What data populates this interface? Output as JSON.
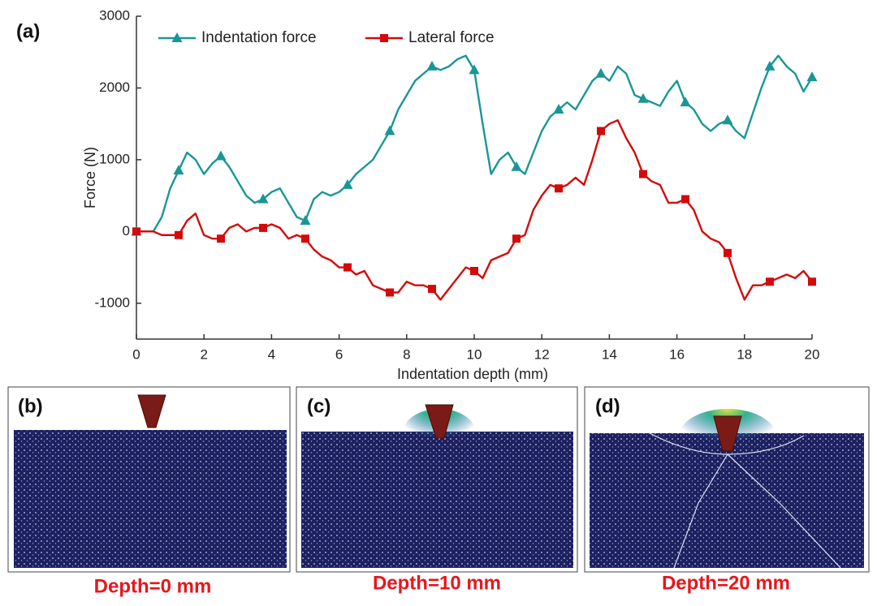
{
  "chart_data": {
    "type": "line",
    "panel_label": "(a)",
    "x_label": "Indentation depth (mm)",
    "y_label": "Force (N)",
    "x": [
      0,
      0.25,
      0.5,
      0.75,
      1,
      1.25,
      1.5,
      1.75,
      2,
      2.25,
      2.5,
      2.75,
      3,
      3.25,
      3.5,
      3.75,
      4,
      4.25,
      4.5,
      4.75,
      5,
      5.25,
      5.5,
      5.75,
      6,
      6.25,
      6.5,
      6.75,
      7,
      7.25,
      7.5,
      7.75,
      8,
      8.25,
      8.5,
      8.75,
      9,
      9.25,
      9.5,
      9.75,
      10,
      10.25,
      10.5,
      10.75,
      11,
      11.25,
      11.5,
      11.75,
      12,
      12.25,
      12.5,
      12.75,
      13,
      13.25,
      13.5,
      13.75,
      14,
      14.25,
      14.5,
      14.75,
      15,
      15.25,
      15.5,
      15.75,
      16,
      16.25,
      16.5,
      16.75,
      17,
      17.25,
      17.5,
      17.75,
      18,
      18.25,
      18.5,
      18.75,
      19,
      19.25,
      19.5,
      19.75,
      20
    ],
    "series": [
      {
        "name": "Indentation force",
        "color": "#1a9696",
        "marker": "triangle",
        "values": [
          0,
          0,
          0,
          200,
          600,
          850,
          1100,
          1000,
          800,
          950,
          1050,
          900,
          700,
          500,
          400,
          450,
          550,
          600,
          400,
          200,
          150,
          450,
          550,
          500,
          550,
          650,
          800,
          900,
          1000,
          1200,
          1400,
          1700,
          1900,
          2100,
          2200,
          2300,
          2250,
          2300,
          2400,
          2450,
          2250,
          1500,
          800,
          1000,
          1100,
          900,
          800,
          1100,
          1400,
          1600,
          1700,
          1800,
          1700,
          1900,
          2100,
          2200,
          2100,
          2300,
          2200,
          1900,
          1850,
          1800,
          1750,
          1950,
          2100,
          1800,
          1700,
          1500,
          1400,
          1500,
          1550,
          1400,
          1300,
          1650,
          2000,
          2300,
          2450,
          2300,
          2200,
          1950,
          2150
        ]
      },
      {
        "name": "Lateral force",
        "color": "#d40a0a",
        "marker": "square",
        "values": [
          0,
          0,
          0,
          -50,
          -50,
          -50,
          150,
          250,
          -50,
          -100,
          -100,
          50,
          100,
          0,
          50,
          50,
          100,
          50,
          -100,
          -50,
          -100,
          -250,
          -350,
          -400,
          -500,
          -500,
          -600,
          -550,
          -750,
          -800,
          -850,
          -850,
          -700,
          -750,
          -750,
          -800,
          -950,
          -800,
          -650,
          -500,
          -550,
          -650,
          -400,
          -350,
          -300,
          -100,
          -50,
          300,
          500,
          650,
          600,
          650,
          750,
          650,
          1000,
          1400,
          1500,
          1550,
          1300,
          1100,
          800,
          700,
          650,
          400,
          400,
          450,
          300,
          0,
          -100,
          -150,
          -300,
          -650,
          -950,
          -750,
          -750,
          -700,
          -650,
          -600,
          -650,
          -550,
          -700
        ]
      }
    ],
    "xlim": [
      0,
      20
    ],
    "ylim": [
      -1500,
      3000
    ],
    "xticks": [
      0,
      2,
      4,
      6,
      8,
      10,
      12,
      14,
      16,
      18,
      20
    ],
    "yticks": [
      -1000,
      0,
      1000,
      2000,
      3000
    ],
    "legend": "upper left"
  },
  "panels": [
    {
      "label": "(b)",
      "caption": "Depth=0 mm"
    },
    {
      "label": "(c)",
      "caption": "Depth=10 mm"
    },
    {
      "label": "(d)",
      "caption": "Depth=20 mm"
    }
  ]
}
